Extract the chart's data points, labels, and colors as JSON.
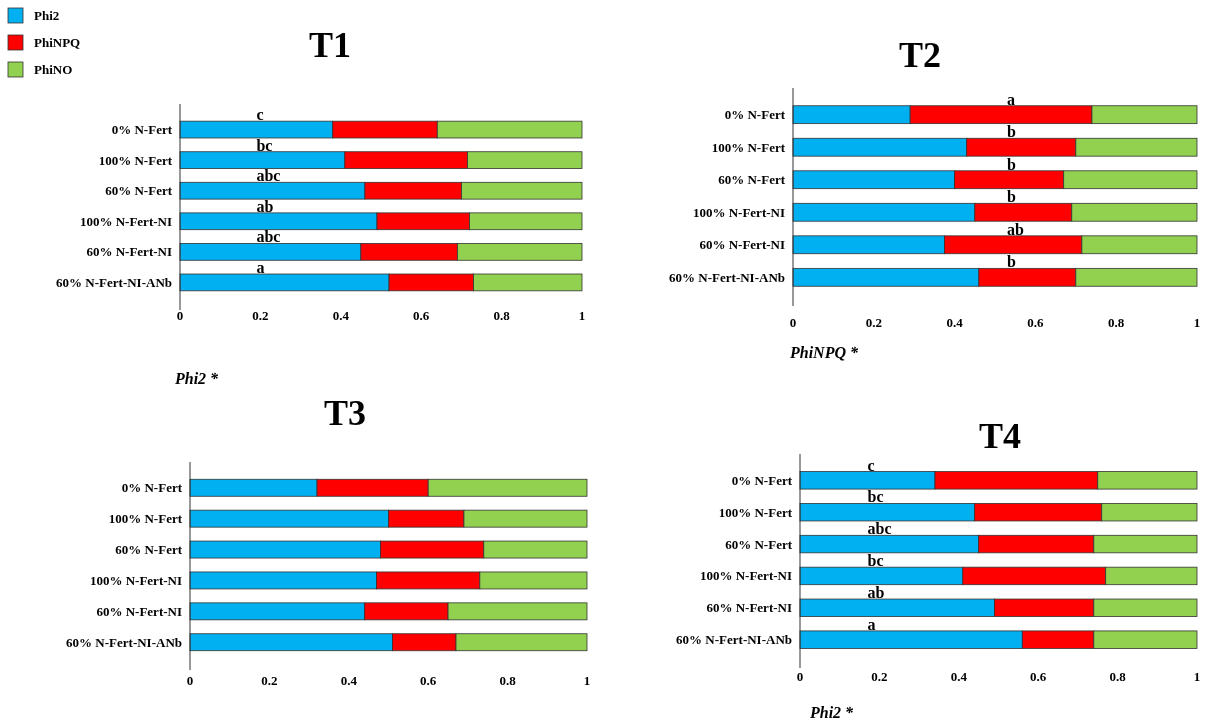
{
  "chart_data": [
    {
      "type": "bar",
      "title": "T1",
      "xlabel": "Phi2 *",
      "orientation": "horizontal",
      "stacked": true,
      "legend": "top left",
      "categories": [
        "0% N-Fert",
        "100% N-Fert",
        "60% N-Fert",
        "100% N-Fert-NI",
        "60% N-Fert-NI",
        "60% N-Fert-NI-ANb"
      ],
      "series": [
        {
          "name": "Phi2",
          "color": "#00b0f0",
          "values": [
            0.38,
            0.41,
            0.46,
            0.49,
            0.45,
            0.52
          ]
        },
        {
          "name": "PhiNPQ",
          "color": "#ff0000",
          "values": [
            0.26,
            0.305,
            0.24,
            0.23,
            0.24,
            0.21
          ]
        },
        {
          "name": "PhiNO",
          "color": "#92d050",
          "values": [
            0.36,
            0.285,
            0.3,
            0.28,
            0.31,
            0.27
          ]
        }
      ],
      "xlim": [
        0,
        1
      ],
      "xticks": [
        0,
        0.2,
        0.4,
        0.6,
        0.8,
        1
      ],
      "annotations": [
        {
          "text": "c",
          "x": 0.19,
          "y": "0% N-Fert"
        },
        {
          "text": "bc",
          "x": 0.19,
          "y": "100% N-Fert"
        },
        {
          "text": "abc",
          "x": 0.19,
          "y": "60% N-Fert"
        },
        {
          "text": "ab",
          "x": 0.19,
          "y": "100% N-Fert-NI"
        },
        {
          "text": "abc",
          "x": 0.19,
          "y": "60% N-Fert-NI"
        },
        {
          "text": "a",
          "x": 0.19,
          "y": "60% N-Fert-NI-ANb"
        }
      ]
    },
    {
      "type": "bar",
      "title": "T2",
      "xlabel": "PhiNPQ *",
      "orientation": "horizontal",
      "stacked": true,
      "categories": [
        "0% N-Fert",
        "100% N-Fert",
        "60% N-Fert",
        "100% N-Fert-NI",
        "60% N-Fert-NI",
        "60% N-Fert-NI-ANb"
      ],
      "series": [
        {
          "color": "#00b0f0",
          "values": [
            0.29,
            0.43,
            0.4,
            0.45,
            0.375,
            0.46
          ]
        },
        {
          "color": "#ff0000",
          "values": [
            0.45,
            0.27,
            0.27,
            0.24,
            0.34,
            0.24
          ]
        },
        {
          "color": "#92d050",
          "values": [
            0.26,
            0.3,
            0.33,
            0.31,
            0.285,
            0.3
          ]
        }
      ],
      "xlim": [
        0,
        1
      ],
      "xticks": [
        0,
        0.2,
        0.4,
        0.6,
        0.8,
        1
      ],
      "annotations": [
        {
          "text": "a",
          "x": 0.53,
          "y": "0% N-Fert"
        },
        {
          "text": "b",
          "x": 0.53,
          "y": "100% N-Fert"
        },
        {
          "text": "b",
          "x": 0.53,
          "y": "60% N-Fert"
        },
        {
          "text": "b",
          "x": 0.53,
          "y": "100% N-Fert-NI"
        },
        {
          "text": "ab",
          "x": 0.53,
          "y": "60% N-Fert-NI"
        },
        {
          "text": "b",
          "x": 0.53,
          "y": "60% N-Fert-NI-ANb"
        }
      ]
    },
    {
      "type": "bar",
      "title": "T3",
      "orientation": "horizontal",
      "stacked": true,
      "categories": [
        "0% N-Fert",
        "100% N-Fert",
        "60% N-Fert",
        "100% N-Fert-NI",
        "60% N-Fert-NI",
        "60% N-Fert-NI-ANb"
      ],
      "series": [
        {
          "color": "#00b0f0",
          "values": [
            0.32,
            0.5,
            0.48,
            0.47,
            0.44,
            0.51
          ]
        },
        {
          "color": "#ff0000",
          "values": [
            0.28,
            0.19,
            0.26,
            0.26,
            0.21,
            0.16
          ]
        },
        {
          "color": "#92d050",
          "values": [
            0.4,
            0.31,
            0.26,
            0.27,
            0.35,
            0.33
          ]
        }
      ],
      "xlim": [
        0,
        1
      ],
      "xticks": [
        0,
        0.2,
        0.4,
        0.6,
        0.8,
        1
      ]
    },
    {
      "type": "bar",
      "title": "T4",
      "xlabel": "Phi2 *",
      "orientation": "horizontal",
      "stacked": true,
      "categories": [
        "0% N-Fert",
        "100% N-Fert",
        "60% N-Fert",
        "100% N-Fert-NI",
        "60% N-Fert-NI",
        "60% N-Fert-NI-ANb"
      ],
      "series": [
        {
          "color": "#00b0f0",
          "values": [
            0.34,
            0.44,
            0.45,
            0.41,
            0.49,
            0.56
          ]
        },
        {
          "color": "#ff0000",
          "values": [
            0.41,
            0.32,
            0.29,
            0.36,
            0.25,
            0.18
          ]
        },
        {
          "color": "#92d050",
          "values": [
            0.25,
            0.24,
            0.26,
            0.23,
            0.26,
            0.26
          ]
        }
      ],
      "xlim": [
        0,
        1
      ],
      "xticks": [
        0,
        0.2,
        0.4,
        0.6,
        0.8,
        1
      ],
      "annotations": [
        {
          "text": "c",
          "x": 0.17,
          "y": "0% N-Fert"
        },
        {
          "text": "bc",
          "x": 0.17,
          "y": "100% N-Fert"
        },
        {
          "text": "abc",
          "x": 0.17,
          "y": "60% N-Fert"
        },
        {
          "text": "bc",
          "x": 0.17,
          "y": "100% N-Fert-NI"
        },
        {
          "text": "ab",
          "x": 0.17,
          "y": "60% N-Fert-NI"
        },
        {
          "text": "a",
          "x": 0.17,
          "y": "60% N-Fert-NI-ANb"
        }
      ]
    }
  ]
}
